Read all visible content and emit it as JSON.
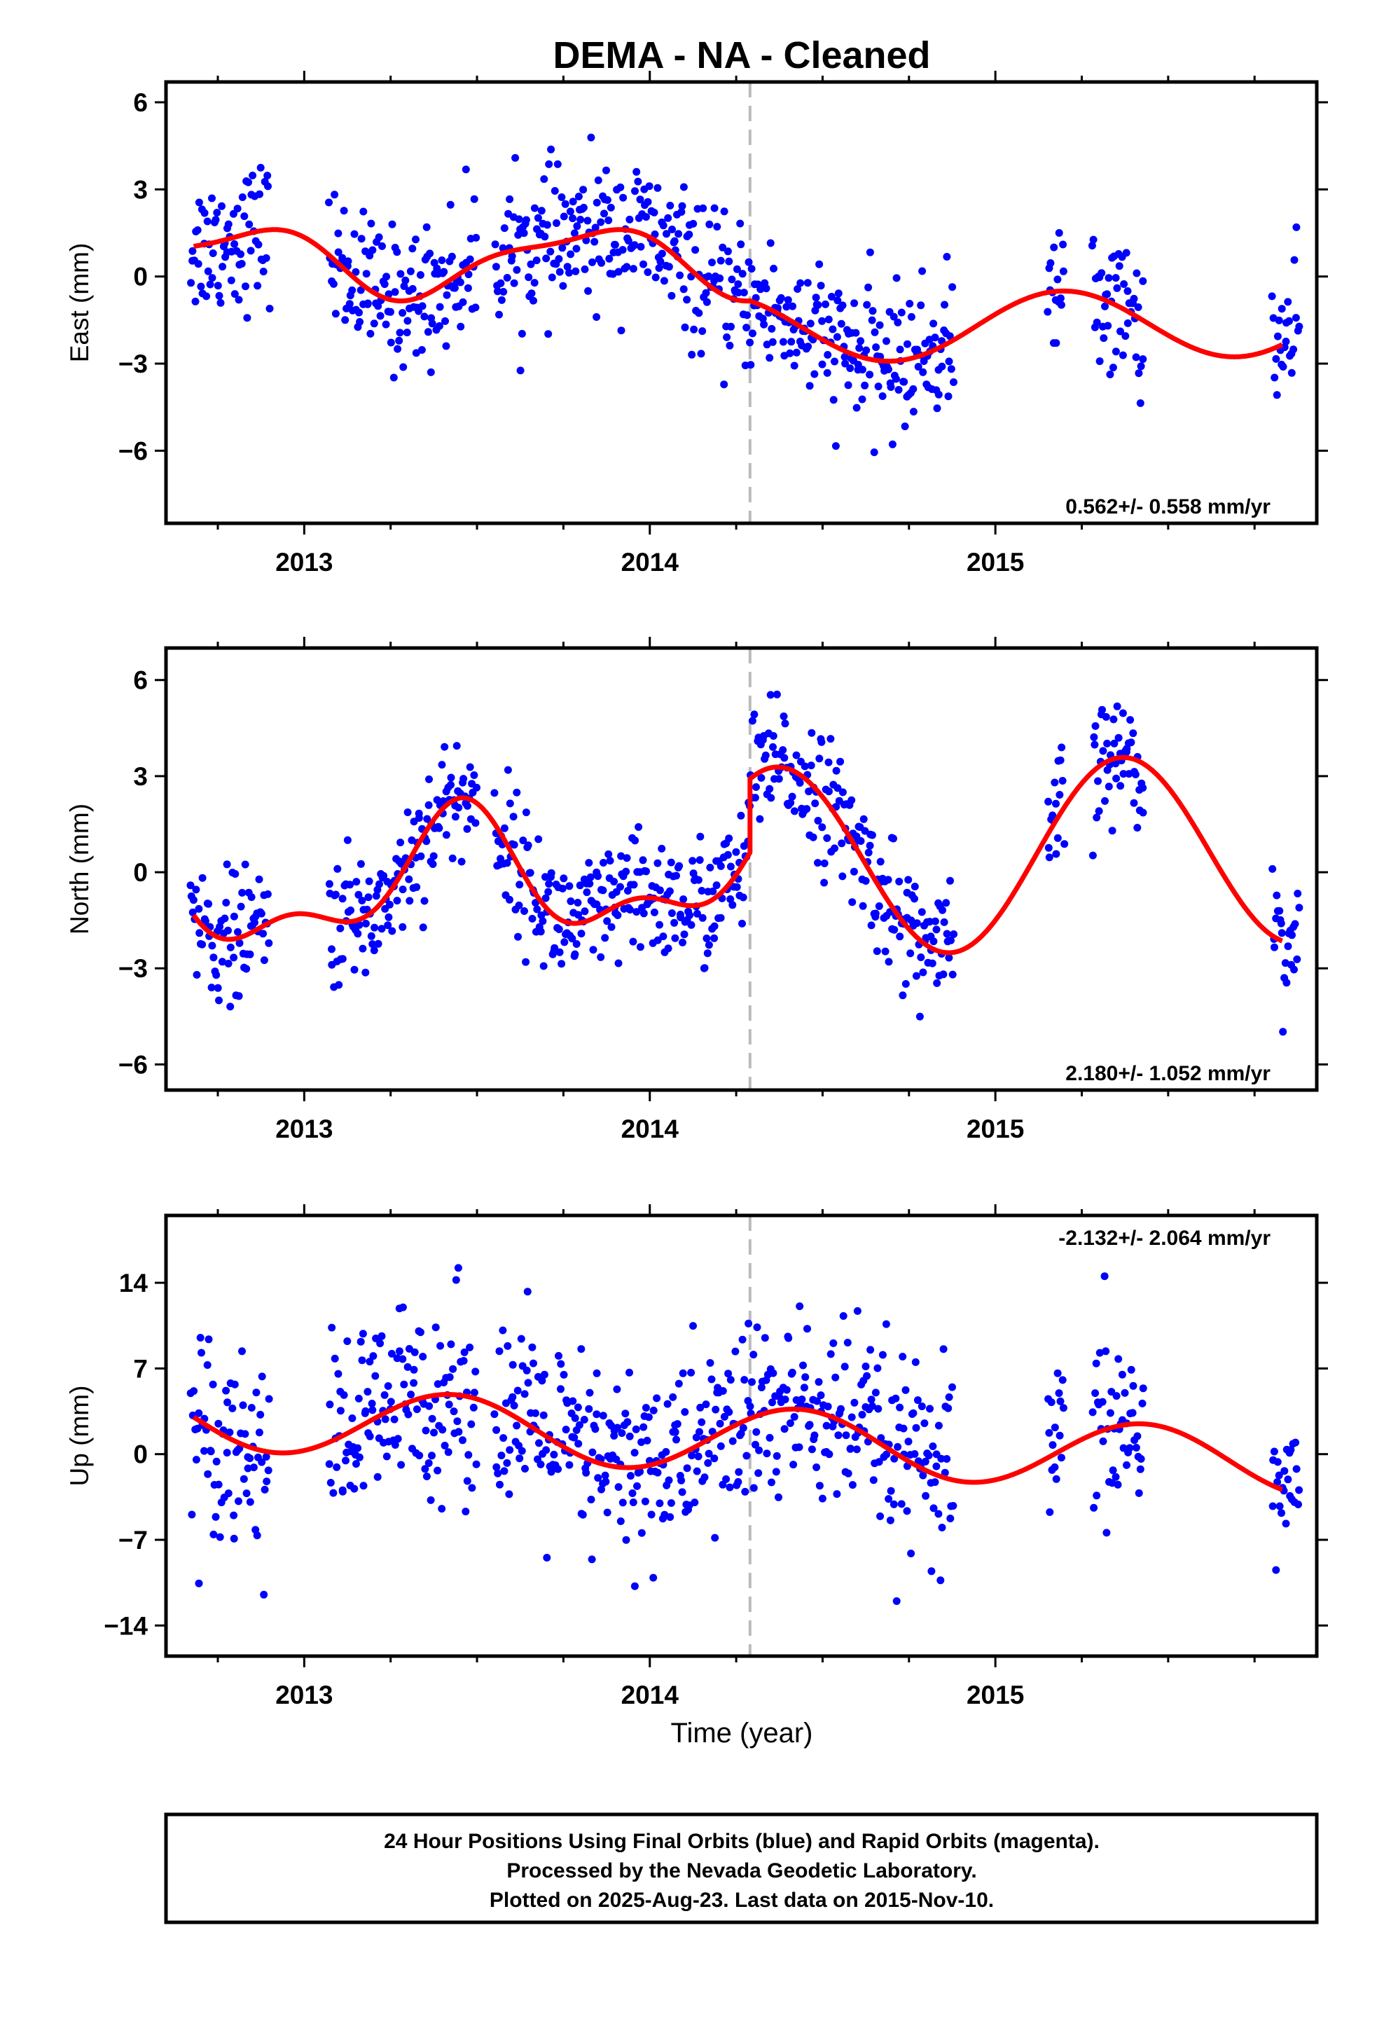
{
  "title": "DEMA  - NA - Cleaned",
  "xlabel": "Time (year)",
  "footer": {
    "lines": [
      "24 Hour Positions Using Final Orbits (blue) and Rapid Orbits (magenta).",
      "Processed by the Nevada Geodetic Laboratory.",
      "Plotted on 2025-Aug-23. Last data on 2015-Nov-10."
    ]
  },
  "colors": {
    "points": "#0000ff",
    "model": "#ff0000",
    "event_line": "#bbbbbb",
    "frame": "#000000"
  },
  "chart_data": [
    {
      "type": "scatter",
      "name": "east",
      "ylabel": "East (mm)",
      "rate_label": "0.562+/- 0.558 mm/yr",
      "rate_position": "bottom-right",
      "xlim": [
        2012.6,
        2015.93
      ],
      "ylim": [
        -8.5,
        6.7
      ],
      "yticks": [
        -6,
        -3,
        0,
        3,
        6
      ],
      "xticks": [
        2013,
        2014,
        2015
      ],
      "xticklabels": [
        "2013",
        "2014",
        "2015"
      ],
      "event_line_x": 2014.29,
      "obs_segments": [
        [
          2012.67,
          2012.9
        ],
        [
          2013.07,
          2013.5
        ],
        [
          2013.55,
          2014.88
        ],
        [
          2015.15,
          2015.2
        ],
        [
          2015.28,
          2015.43
        ],
        [
          2015.8,
          2015.88
        ]
      ],
      "model": {
        "step_at": 2014.29,
        "pre": {
          "a": -0.6,
          "b": 1.4,
          "bias": 0.55,
          "c1": 0.45,
          "s1": -1.0,
          "c2": 0.35,
          "s2": 0.0,
          "trend": 0
        },
        "post": {
          "a": -6.9,
          "b": 2.5,
          "bias": -1.85,
          "c1": 0.4,
          "s1": 1.1,
          "c2": 0.0,
          "s2": 0.0,
          "trend": 0.15
        }
      },
      "scatter_sd": 1.2,
      "scatter_count": 720
    },
    {
      "type": "scatter",
      "name": "north",
      "ylabel": "North (mm)",
      "rate_label": "2.180+/- 1.052 mm/yr",
      "rate_position": "bottom-right",
      "xlim": [
        2012.6,
        2015.93
      ],
      "ylim": [
        -6.8,
        7.0
      ],
      "yticks": [
        -6,
        -3,
        0,
        3,
        6
      ],
      "xticks": [
        2013,
        2014,
        2015
      ],
      "xticklabels": [
        "2013",
        "2014",
        "2015"
      ],
      "event_line_x": 2014.29,
      "obs_segments": [
        [
          2012.67,
          2012.9
        ],
        [
          2013.07,
          2013.5
        ],
        [
          2013.55,
          2014.88
        ],
        [
          2015.15,
          2015.2
        ],
        [
          2015.28,
          2015.43
        ],
        [
          2015.8,
          2015.88
        ]
      ],
      "model": {
        "step_at": 2014.29,
        "pre": {
          "a": -0.55,
          "b": 2.0,
          "bias": 0.0,
          "c1": -1.6,
          "s1": 0.6,
          "c2": 0.8,
          "s2": -0.4,
          "trend": 0.5
        },
        "post": {
          "a": -3.0,
          "b": 2.4,
          "bias": 0.2,
          "c1": -2.0,
          "s1": 2.2,
          "c2": 0.0,
          "s2": 0.0,
          "trend": 0.3
        }
      },
      "scatter_sd": 1.0,
      "scatter_count": 720
    },
    {
      "type": "scatter",
      "name": "up",
      "ylabel": "Up (mm)",
      "rate_label": "-2.132+/- 2.064 mm/yr",
      "rate_position": "top-right",
      "xlim": [
        2012.6,
        2015.93
      ],
      "ylim": [
        -16.5,
        19.5
      ],
      "yticks": [
        -14,
        -7,
        0,
        7,
        14
      ],
      "ytick_prefix_minus": "−",
      "xticks": [
        2013,
        2014,
        2015
      ],
      "xticklabels": [
        "2013",
        "2014",
        "2015"
      ],
      "event_line_x": 2014.29,
      "obs_segments": [
        [
          2012.67,
          2012.9
        ],
        [
          2013.07,
          2013.5
        ],
        [
          2013.55,
          2014.88
        ],
        [
          2015.15,
          2015.2
        ],
        [
          2015.28,
          2015.43
        ],
        [
          2015.8,
          2015.88
        ]
      ],
      "model": {
        "step_at": 2014.29,
        "pre": {
          "a": -0.1,
          "b": 1.6,
          "bias": 1.5,
          "c1": -2.4,
          "s1": 1.2,
          "c2": 0.0,
          "s2": 0.0,
          "trend": -1.2
        },
        "post": {
          "a": -0.1,
          "b": 1.6,
          "bias": 1.5,
          "c1": -2.4,
          "s1": 1.2,
          "c2": 0.0,
          "s2": 0.0,
          "trend": -1.2
        }
      },
      "scatter_sd": 4.0,
      "scatter_count": 720
    }
  ]
}
